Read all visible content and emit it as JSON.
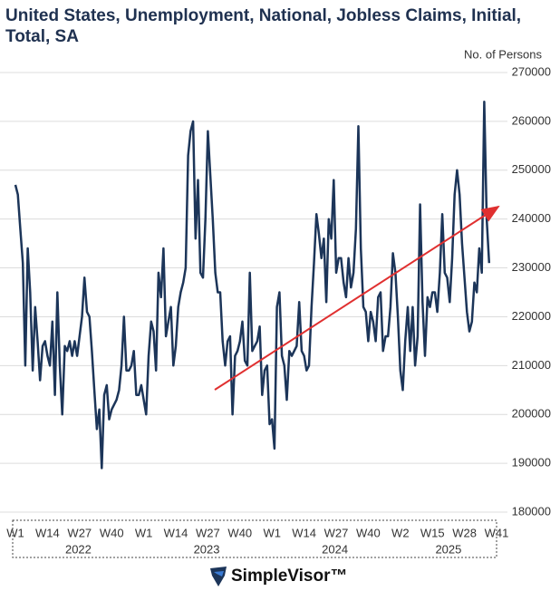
{
  "chart_data": {
    "type": "line",
    "title": "United States, Unemployment, National, Jobless Claims, Initial, Total, SA",
    "y_label": "No. of Persons",
    "categories": [
      "W1",
      null,
      null,
      null,
      null,
      null,
      null,
      null,
      null,
      null,
      null,
      null,
      null,
      "W14",
      null,
      null,
      null,
      null,
      null,
      null,
      null,
      null,
      null,
      null,
      null,
      null,
      "W27",
      null,
      null,
      null,
      null,
      null,
      null,
      null,
      null,
      null,
      null,
      null,
      null,
      "W40",
      null,
      null,
      null,
      null,
      null,
      null,
      null,
      null,
      null,
      null,
      null,
      null,
      "W1",
      null,
      null,
      null,
      null,
      null,
      null,
      null,
      null,
      null,
      null,
      null,
      null,
      "W14",
      null,
      null,
      null,
      null,
      null,
      null,
      null,
      null,
      null,
      null,
      null,
      null,
      "W27",
      null,
      null,
      null,
      null,
      null,
      null,
      null,
      null,
      null,
      null,
      null,
      null,
      "W40",
      null,
      null,
      null,
      null,
      null,
      null,
      null,
      null,
      null,
      null,
      null,
      null,
      "W1",
      null,
      null,
      null,
      null,
      null,
      null,
      null,
      null,
      null,
      null,
      null,
      null,
      "W14",
      null,
      null,
      null,
      null,
      null,
      null,
      null,
      null,
      null,
      null,
      null,
      null,
      "W27",
      null,
      null,
      null,
      null,
      null,
      null,
      null,
      null,
      null,
      null,
      null,
      null,
      "W40",
      null,
      null,
      null,
      null,
      null,
      null,
      null,
      null,
      null,
      null,
      null,
      null,
      "W2",
      null,
      null,
      null,
      null,
      null,
      null,
      null,
      null,
      null,
      null,
      null,
      null,
      "W15",
      null,
      null,
      null,
      null,
      null,
      null,
      null,
      null,
      null,
      null,
      null,
      null,
      "W28",
      null,
      null,
      null,
      null,
      null,
      null,
      null,
      null,
      null,
      null,
      null,
      null,
      "W41"
    ],
    "x_groups": [
      {
        "label": "2022",
        "span": 52
      },
      {
        "label": "2023",
        "span": 52
      },
      {
        "label": "2024",
        "span": 52
      },
      {
        "label": "2025",
        "span": 40
      }
    ],
    "series": [
      {
        "name": "Initial Jobless Claims",
        "color": "#1c3559",
        "values": [
          247000,
          245000,
          238000,
          231000,
          210000,
          234000,
          225000,
          209000,
          222000,
          215000,
          207000,
          214000,
          215000,
          212000,
          210000,
          219000,
          204000,
          225000,
          210000,
          200000,
          214000,
          213000,
          215000,
          212000,
          215000,
          212000,
          216000,
          220000,
          228000,
          221000,
          220000,
          213000,
          205000,
          197000,
          201000,
          189000,
          204000,
          206000,
          199000,
          201000,
          202000,
          203000,
          205000,
          210000,
          220000,
          209000,
          209000,
          210000,
          213000,
          204000,
          204000,
          206000,
          203000,
          200000,
          212000,
          219000,
          217000,
          209000,
          229000,
          224000,
          234000,
          216000,
          219000,
          222000,
          210000,
          214000,
          222000,
          225000,
          227000,
          230000,
          253000,
          258000,
          260000,
          236000,
          248000,
          229000,
          228000,
          240000,
          258000,
          249000,
          240000,
          229000,
          225000,
          225000,
          215000,
          210000,
          215000,
          216000,
          200000,
          212000,
          213000,
          215000,
          219000,
          211000,
          210000,
          229000,
          213000,
          214000,
          215000,
          218000,
          204000,
          209000,
          210000,
          198000,
          199000,
          193000,
          222000,
          225000,
          212000,
          210000,
          203000,
          213000,
          212000,
          213000,
          214000,
          223000,
          213000,
          212000,
          209000,
          210000,
          222000,
          231000,
          241000,
          237000,
          232000,
          236000,
          223000,
          240000,
          236000,
          248000,
          229000,
          232000,
          232000,
          227000,
          224000,
          232000,
          226000,
          229000,
          238000,
          259000,
          234000,
          222000,
          221000,
          215000,
          221000,
          219000,
          215000,
          224000,
          225000,
          213000,
          216000,
          216000,
          222000,
          233000,
          229000,
          220000,
          209000,
          205000,
          215000,
          222000,
          213000,
          222000,
          210000,
          216000,
          243000,
          223000,
          212000,
          224000,
          222000,
          225000,
          225000,
          221000,
          229000,
          241000,
          229000,
          228000,
          223000,
          232000,
          245000,
          250000,
          245000,
          235000,
          228000,
          221000,
          217000,
          219000,
          227000,
          225000,
          234000,
          229000,
          264000,
          240000,
          231000,
          null,
          null,
          null
        ]
      }
    ],
    "ylim": [
      180000,
      270000
    ],
    "yticks": [
      180000,
      190000,
      200000,
      210000,
      220000,
      230000,
      240000,
      250000,
      260000,
      270000
    ],
    "grid": true,
    "logo": "SimpleVisor™"
  }
}
